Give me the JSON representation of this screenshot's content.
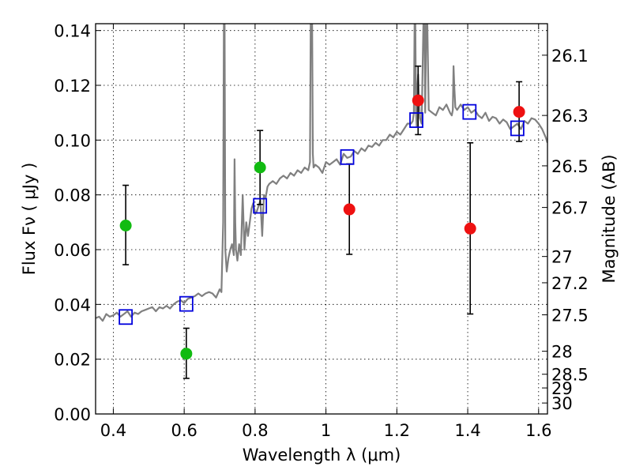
{
  "chart_data": {
    "type": "scatter",
    "xlabel": "Wavelength  λ (μm)",
    "ylabel": "Flux  Fν  ( μJy )",
    "ylabel_right": "Magnitude (AB)",
    "xlim": [
      0.35,
      1.625
    ],
    "ylim": [
      0.0,
      0.1425
    ],
    "x_ticks": [
      {
        "value": 0.4,
        "label": "0.4"
      },
      {
        "value": 0.6,
        "label": "0.6"
      },
      {
        "value": 0.8,
        "label": "0.8"
      },
      {
        "value": 1.0,
        "label": "1"
      },
      {
        "value": 1.2,
        "label": "1.2"
      },
      {
        "value": 1.4,
        "label": "1.4"
      },
      {
        "value": 1.6,
        "label": "1.6"
      }
    ],
    "y_ticks": [
      {
        "value": 0.0,
        "label": "0.00"
      },
      {
        "value": 0.02,
        "label": "0.02"
      },
      {
        "value": 0.04,
        "label": "0.04"
      },
      {
        "value": 0.06,
        "label": "0.06"
      },
      {
        "value": 0.08,
        "label": "0.08"
      },
      {
        "value": 0.1,
        "label": "0.10"
      },
      {
        "value": 0.12,
        "label": "0.12"
      },
      {
        "value": 0.14,
        "label": "0.14"
      }
    ],
    "right_ticks": [
      {
        "flux": 0.131,
        "label": "26.1"
      },
      {
        "flux": 0.109,
        "label": "26.3"
      },
      {
        "flux": 0.0906,
        "label": "26.5"
      },
      {
        "flux": 0.0754,
        "label": "26.7"
      },
      {
        "flux": 0.0575,
        "label": "27"
      },
      {
        "flux": 0.0479,
        "label": "27.2"
      },
      {
        "flux": 0.0362,
        "label": "27.5"
      },
      {
        "flux": 0.0229,
        "label": "28"
      },
      {
        "flux": 0.0145,
        "label": "28.5"
      },
      {
        "flux": 0.0095,
        "label": "29"
      },
      {
        "flux": 0.004,
        "label": "30"
      }
    ],
    "grid": true,
    "colors": {
      "template": "#808080",
      "green": "#11bb11",
      "red": "#ee1111",
      "model": "#0000dd",
      "errorbar": "#000000"
    },
    "green_points": [
      {
        "x": 0.435,
        "y": 0.0688,
        "yerr_low": 0.0545,
        "yerr_high": 0.0835
      },
      {
        "x": 0.606,
        "y": 0.022,
        "yerr_low": 0.013,
        "yerr_high": 0.0313
      },
      {
        "x": 0.814,
        "y": 0.09,
        "yerr_low": 0.0765,
        "yerr_high": 0.1035
      }
    ],
    "red_points": [
      {
        "x": 1.066,
        "y": 0.0747,
        "yerr_low": 0.0583,
        "yerr_high": 0.0913
      },
      {
        "x": 1.26,
        "y": 0.1145,
        "yerr_low": 0.102,
        "yerr_high": 0.127
      },
      {
        "x": 1.407,
        "y": 0.0677,
        "yerr_low": 0.0365,
        "yerr_high": 0.099
      },
      {
        "x": 1.545,
        "y": 0.1103,
        "yerr_low": 0.0995,
        "yerr_high": 0.1213
      }
    ],
    "model_points": [
      {
        "x": 0.435,
        "y": 0.0354
      },
      {
        "x": 0.606,
        "y": 0.0402
      },
      {
        "x": 0.814,
        "y": 0.076
      },
      {
        "x": 1.06,
        "y": 0.0938
      },
      {
        "x": 1.255,
        "y": 0.1073
      },
      {
        "x": 1.405,
        "y": 0.1103
      },
      {
        "x": 1.54,
        "y": 0.1043
      }
    ],
    "template": {
      "x": [
        0.35,
        0.36,
        0.37,
        0.38,
        0.39,
        0.4,
        0.41,
        0.42,
        0.43,
        0.44,
        0.45,
        0.46,
        0.47,
        0.48,
        0.49,
        0.5,
        0.51,
        0.52,
        0.53,
        0.54,
        0.55,
        0.56,
        0.57,
        0.58,
        0.59,
        0.6,
        0.61,
        0.62,
        0.63,
        0.64,
        0.65,
        0.66,
        0.67,
        0.68,
        0.69,
        0.7,
        0.705,
        0.71,
        0.712,
        0.714,
        0.716,
        0.72,
        0.725,
        0.73,
        0.735,
        0.74,
        0.742,
        0.744,
        0.746,
        0.75,
        0.755,
        0.76,
        0.765,
        0.77,
        0.775,
        0.78,
        0.785,
        0.79,
        0.795,
        0.8,
        0.805,
        0.81,
        0.815,
        0.82,
        0.825,
        0.83,
        0.835,
        0.84,
        0.85,
        0.86,
        0.87,
        0.88,
        0.89,
        0.9,
        0.91,
        0.92,
        0.93,
        0.94,
        0.95,
        0.955,
        0.957,
        0.959,
        0.961,
        0.963,
        0.965,
        0.97,
        0.98,
        0.99,
        1.0,
        1.01,
        1.02,
        1.03,
        1.04,
        1.05,
        1.06,
        1.07,
        1.08,
        1.09,
        1.1,
        1.11,
        1.12,
        1.13,
        1.14,
        1.15,
        1.16,
        1.17,
        1.18,
        1.19,
        1.2,
        1.21,
        1.22,
        1.23,
        1.24,
        1.245,
        1.248,
        1.25,
        1.252,
        1.254,
        1.256,
        1.258,
        1.26,
        1.265,
        1.27,
        1.275,
        1.278,
        1.28,
        1.283,
        1.286,
        1.29,
        1.3,
        1.31,
        1.32,
        1.33,
        1.34,
        1.35,
        1.355,
        1.358,
        1.36,
        1.362,
        1.365,
        1.37,
        1.38,
        1.39,
        1.4,
        1.41,
        1.42,
        1.43,
        1.44,
        1.45,
        1.46,
        1.47,
        1.48,
        1.49,
        1.5,
        1.51,
        1.52,
        1.53,
        1.54,
        1.55,
        1.56,
        1.57,
        1.58,
        1.59,
        1.6,
        1.61,
        1.62,
        1.625
      ],
      "y": [
        0.035,
        0.0355,
        0.034,
        0.0365,
        0.0355,
        0.036,
        0.037,
        0.0355,
        0.0365,
        0.0375,
        0.0355,
        0.037,
        0.0365,
        0.0375,
        0.038,
        0.0385,
        0.039,
        0.0375,
        0.039,
        0.0385,
        0.0395,
        0.0385,
        0.04,
        0.041,
        0.0415,
        0.0405,
        0.042,
        0.0425,
        0.043,
        0.044,
        0.043,
        0.044,
        0.0445,
        0.044,
        0.0425,
        0.0455,
        0.0445,
        0.07,
        0.143,
        0.143,
        0.06,
        0.052,
        0.057,
        0.06,
        0.062,
        0.058,
        0.093,
        0.07,
        0.06,
        0.056,
        0.062,
        0.058,
        0.08,
        0.06,
        0.07,
        0.065,
        0.07,
        0.075,
        0.077,
        0.073,
        0.074,
        0.076,
        0.078,
        0.065,
        0.08,
        0.079,
        0.083,
        0.084,
        0.085,
        0.084,
        0.086,
        0.087,
        0.086,
        0.088,
        0.087,
        0.089,
        0.088,
        0.09,
        0.089,
        0.092,
        0.143,
        0.143,
        0.143,
        0.095,
        0.09,
        0.091,
        0.09,
        0.088,
        0.092,
        0.091,
        0.092,
        0.093,
        0.091,
        0.095,
        0.0935,
        0.094,
        0.096,
        0.095,
        0.097,
        0.096,
        0.098,
        0.0975,
        0.099,
        0.098,
        0.1,
        0.1,
        0.102,
        0.101,
        0.103,
        0.102,
        0.104,
        0.106,
        0.106,
        0.107,
        0.11,
        0.143,
        0.143,
        0.11,
        0.105,
        0.12,
        0.124,
        0.108,
        0.106,
        0.143,
        0.143,
        0.11,
        0.143,
        0.143,
        0.111,
        0.11,
        0.109,
        0.112,
        0.111,
        0.113,
        0.11,
        0.109,
        0.111,
        0.127,
        0.12,
        0.112,
        0.111,
        0.113,
        0.111,
        0.112,
        0.11,
        0.111,
        0.109,
        0.108,
        0.11,
        0.107,
        0.1085,
        0.108,
        0.106,
        0.1075,
        0.1065,
        0.104,
        0.105,
        0.106,
        0.104,
        0.107,
        0.106,
        0.108,
        0.1075,
        0.106,
        0.104,
        0.101,
        0.099
      ]
    }
  }
}
